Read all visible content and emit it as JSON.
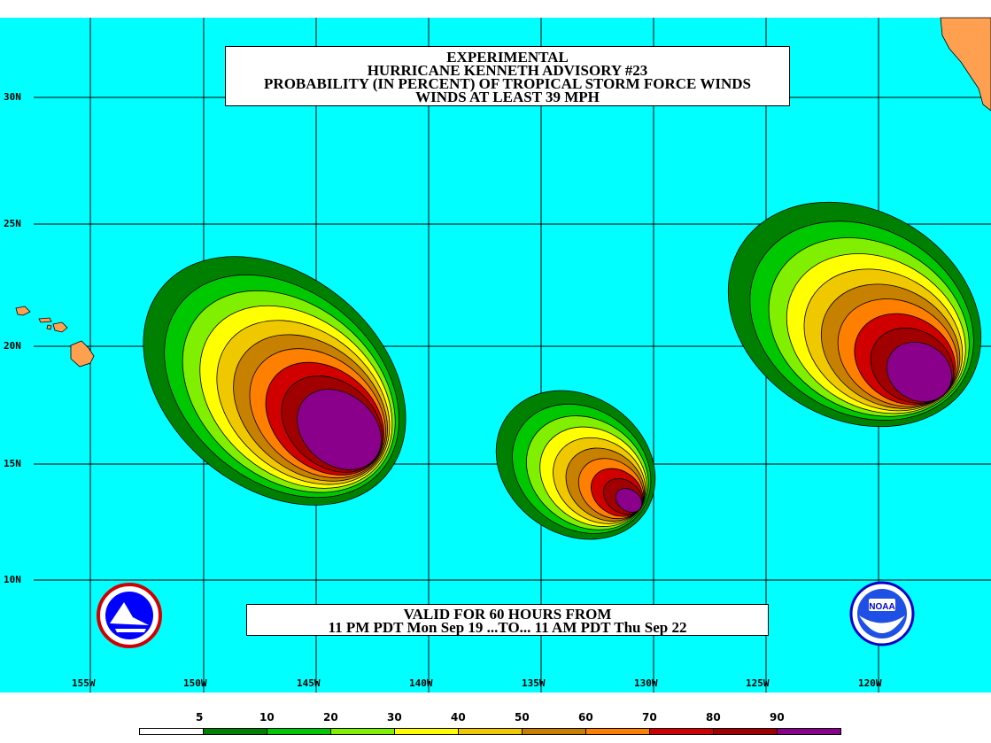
{
  "title": {
    "line1": "EXPERIMENTAL",
    "line2": "HURRICANE KENNETH ADVISORY #23",
    "line3": "PROBABILITY (IN PERCENT) OF TROPICAL STORM FORCE WINDS",
    "line4": "WINDS AT LEAST 39 MPH"
  },
  "valid": {
    "line1": "VALID FOR 60 HOURS FROM",
    "line2": "11 PM PDT Mon Sep 19 ...TO... 11 AM PDT Thu Sep 22"
  },
  "latitude_labels": [
    "30N",
    "25N",
    "20N",
    "15N",
    "10N"
  ],
  "longitude_labels": [
    "155W",
    "150W",
    "145W",
    "140W",
    "135W",
    "130W",
    "125W",
    "120W"
  ],
  "legend": {
    "labels": [
      "5",
      "10",
      "20",
      "30",
      "40",
      "50",
      "60",
      "70",
      "80",
      "90"
    ],
    "colors": [
      "#ffffff",
      "#008000",
      "#00c800",
      "#80f000",
      "#ffff00",
      "#f0c800",
      "#c88000",
      "#ff8000",
      "#d00000",
      "#a00000",
      "#8b008b"
    ]
  },
  "colors": {
    "ocean": "#00ffff",
    "land": "#ffa050",
    "grid": "#000000"
  },
  "logos": {
    "left": "NWS seal",
    "right": "NOAA"
  }
}
